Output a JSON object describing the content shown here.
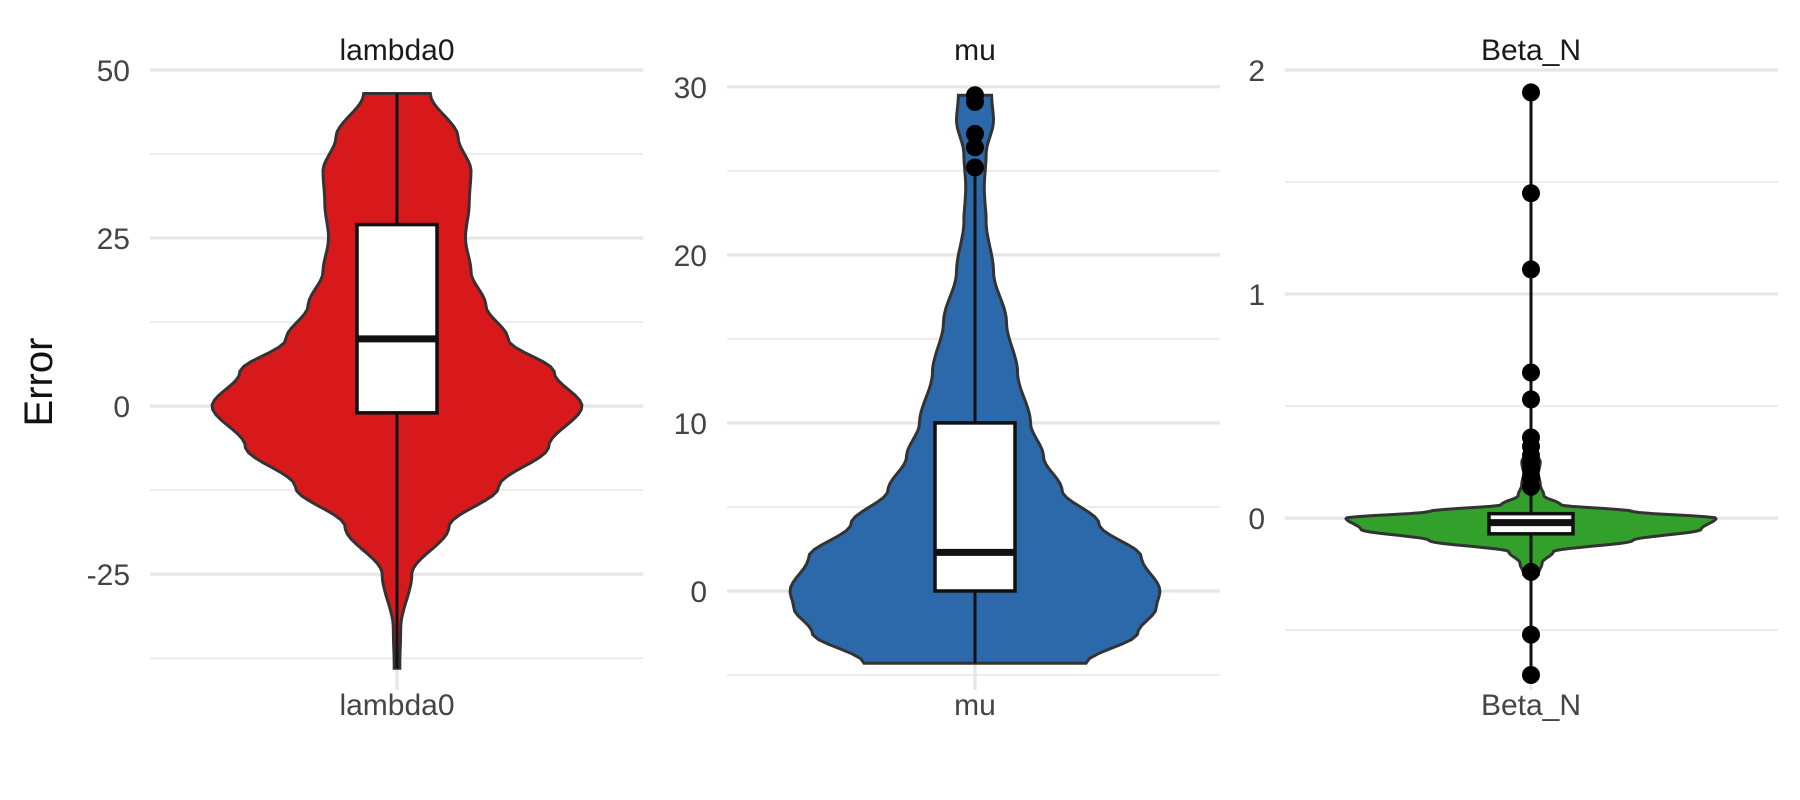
{
  "y_axis_title": "Error",
  "chart_data": [
    {
      "type": "violin",
      "title": "lambda0",
      "x_tick": "lambda0",
      "color": "#d7191c",
      "ylim": [
        -40,
        50
      ],
      "y_ticks": [
        50,
        25,
        0,
        -25
      ],
      "y_tick_labels": [
        "50",
        "25",
        "0",
        "-25"
      ],
      "y_minor": [
        37.5,
        12.5,
        -12.5,
        -37.5
      ],
      "violin_range": [
        -39,
        46.5
      ],
      "box": {
        "whisker_low": -39,
        "q1": -1,
        "median": 10,
        "q3": 27,
        "whisker_high": 46.5
      },
      "outliers": [],
      "density_profile": [
        [
          -39,
          0.015
        ],
        [
          -33,
          0.02
        ],
        [
          -25,
          0.08
        ],
        [
          -18,
          0.28
        ],
        [
          -12,
          0.55
        ],
        [
          -6,
          0.82
        ],
        [
          0,
          1.0
        ],
        [
          5,
          0.85
        ],
        [
          10,
          0.6
        ],
        [
          15,
          0.48
        ],
        [
          20,
          0.4
        ],
        [
          25,
          0.37
        ],
        [
          30,
          0.39
        ],
        [
          35,
          0.4
        ],
        [
          40,
          0.33
        ],
        [
          46.5,
          0.18
        ]
      ]
    },
    {
      "type": "violin",
      "title": "mu",
      "x_tick": "mu",
      "color": "#2c69aa",
      "ylim": [
        -5,
        31
      ],
      "y_ticks": [
        30,
        20,
        10,
        0
      ],
      "y_tick_labels": [
        "30",
        "20",
        "10",
        "0"
      ],
      "y_minor": [
        25,
        15,
        5,
        -5
      ],
      "violin_range": [
        -4.3,
        29.5
      ],
      "box": {
        "whisker_low": -4.3,
        "q1": 0,
        "median": 2.3,
        "q3": 10,
        "whisker_high": 25
      },
      "outliers": [
        25.2,
        26.4,
        27.2,
        29.1,
        29.5
      ],
      "density_profile": [
        [
          -4.3,
          0.6
        ],
        [
          -2.5,
          0.88
        ],
        [
          -1,
          0.98
        ],
        [
          0,
          1.0
        ],
        [
          2,
          0.9
        ],
        [
          4,
          0.67
        ],
        [
          6,
          0.47
        ],
        [
          8,
          0.37
        ],
        [
          10,
          0.3
        ],
        [
          13,
          0.23
        ],
        [
          16,
          0.17
        ],
        [
          19,
          0.1
        ],
        [
          22,
          0.06
        ],
        [
          24,
          0.05
        ],
        [
          26,
          0.06
        ],
        [
          28,
          0.1
        ],
        [
          29.5,
          0.09
        ]
      ]
    },
    {
      "type": "violin",
      "title": "Beta_N",
      "x_tick": "Beta_N",
      "color": "#33a02c",
      "ylim": [
        -0.7,
        2.0
      ],
      "y_ticks": [
        2,
        1,
        0
      ],
      "y_tick_labels": [
        "2",
        "1",
        "0"
      ],
      "y_minor": [
        1.5,
        0.5,
        -0.5
      ],
      "violin_range": [
        -0.25,
        0.3
      ],
      "box": {
        "whisker_low": -0.7,
        "q1": -0.07,
        "median": -0.02,
        "q3": 0.02,
        "whisker_high": 1.9
      },
      "outliers": [
        1.9,
        1.45,
        1.11,
        0.65,
        0.53,
        0.36,
        0.32,
        0.28,
        0.25,
        0.22,
        0.18,
        0.14,
        -0.24,
        -0.52,
        -0.7
      ],
      "density_profile": [
        [
          -0.25,
          0.04
        ],
        [
          -0.2,
          0.06
        ],
        [
          -0.15,
          0.12
        ],
        [
          -0.1,
          0.55
        ],
        [
          -0.05,
          0.92
        ],
        [
          0,
          1.0
        ],
        [
          0.03,
          0.55
        ],
        [
          0.06,
          0.16
        ],
        [
          0.1,
          0.07
        ],
        [
          0.15,
          0.05
        ],
        [
          0.2,
          0.04
        ],
        [
          0.25,
          0.05
        ],
        [
          0.3,
          0.02
        ]
      ]
    }
  ]
}
